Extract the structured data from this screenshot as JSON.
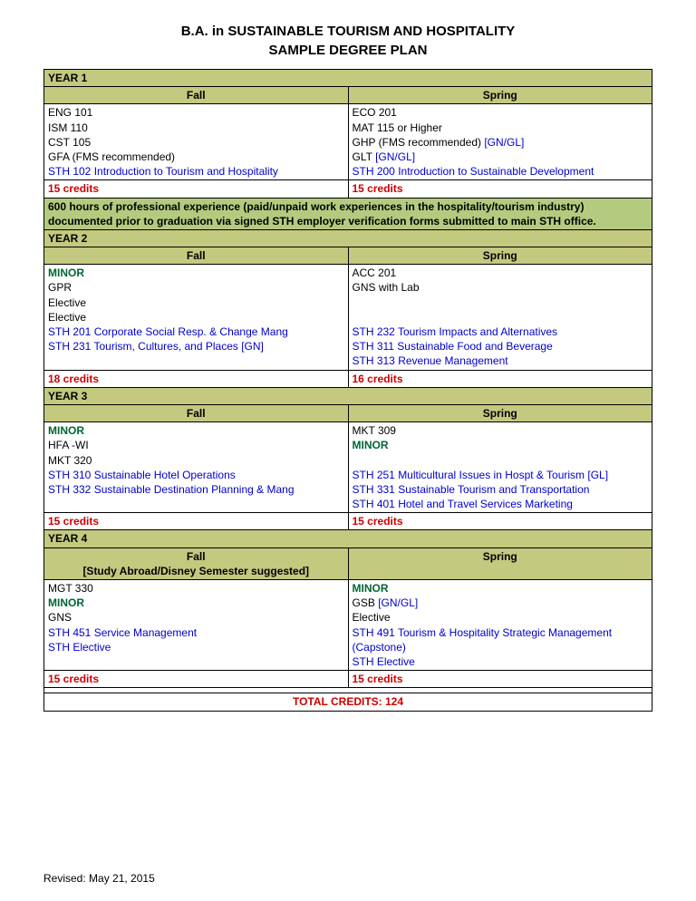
{
  "title1": "B.A. in SUSTAINABLE TOURISM AND HOSPITALITY",
  "title2": "SAMPLE DEGREE PLAN",
  "colors": {
    "headerBg": "#c3c97f",
    "noteBg": "#b4cb7f",
    "green": "#006633",
    "blue": "#0000cc",
    "red": "#cc0000"
  },
  "years": {
    "y1": {
      "label": "YEAR 1",
      "fall": "Fall",
      "spring": "Spring",
      "fallNote": "",
      "springNote": "",
      "fallCourses": [
        {
          "t": "ENG 101",
          "c": "b"
        },
        {
          "t": "ISM 110",
          "c": "b"
        },
        {
          "t": "CST 105",
          "c": "b"
        },
        {
          "t": "GFA (FMS recommended)",
          "c": "b"
        },
        {
          "t": "STH 102 Introduction to Tourism and Hospitality",
          "c": "blue"
        }
      ],
      "springCourses": [
        {
          "t": "ECO 201",
          "c": "b"
        },
        {
          "t": "MAT 115 or Higher",
          "c": "b"
        },
        {
          "t": "GHP (FMS recommended) ",
          "c": "b",
          "suffix": "[GN/GL]",
          "sc": "blue"
        },
        {
          "t": "GLT ",
          "c": "b",
          "suffix": "[GN/GL]",
          "sc": "blue"
        },
        {
          "t": "STH 200 Introduction to Sustainable Development",
          "c": "blue"
        }
      ],
      "fallCredits": "15 credits",
      "springCredits": "15 credits"
    },
    "note": "600 hours of professional experience (paid/unpaid work experiences in the hospitality/tourism industry) documented prior to graduation via signed STH employer verification forms submitted to main STH office.",
    "y2": {
      "label": "YEAR 2",
      "fall": "Fall",
      "spring": "Spring",
      "fallCourses": [
        {
          "t": "MINOR",
          "c": "green"
        },
        {
          "t": "GPR",
          "c": "b"
        },
        {
          "t": "Elective",
          "c": "b"
        },
        {
          "t": "Elective",
          "c": "b"
        },
        {
          "t": "STH 201 Corporate Social Resp. & Change Mang",
          "c": "blue"
        },
        {
          "t": "STH 231 Tourism, Cultures, and Places [GN]",
          "c": "blue"
        }
      ],
      "springCourses": [
        {
          "t": "ACC 201",
          "c": "b"
        },
        {
          "t": "GNS with Lab",
          "c": "b"
        },
        {
          "t": "",
          "c": "b"
        },
        {
          "t": "",
          "c": "b"
        },
        {
          "t": "STH 232 Tourism Impacts and Alternatives",
          "c": "blue"
        },
        {
          "t": "STH 311 Sustainable Food and Beverage",
          "c": "blue"
        },
        {
          "t": "STH 313 Revenue Management",
          "c": "blue"
        }
      ],
      "fallCredits": "18 credits",
      "springCredits": "16 credits"
    },
    "y3": {
      "label": "YEAR 3",
      "fall": "Fall",
      "spring": "Spring",
      "fallCourses": [
        {
          "t": "MINOR",
          "c": "green"
        },
        {
          "t": "HFA -WI",
          "c": "b"
        },
        {
          "t": "MKT 320",
          "c": "b"
        },
        {
          "t": "STH 310 Sustainable Hotel Operations",
          "c": "blue"
        },
        {
          "t": "STH 332 Sustainable Destination Planning & Mang",
          "c": "blue"
        }
      ],
      "springCourses": [
        {
          "t": "MKT 309",
          "c": "b"
        },
        {
          "t": "MINOR",
          "c": "green"
        },
        {
          "t": "",
          "c": "b"
        },
        {
          "t": "STH 251 Multicultural Issues in Hospt & Tourism [GL]",
          "c": "blue"
        },
        {
          "t": "STH 331 Sustainable Tourism and Transportation",
          "c": "blue"
        },
        {
          "t": "STH 401 Hotel and Travel Services Marketing",
          "c": "blue"
        }
      ],
      "fallCredits": "15 credits",
      "springCredits": "15 credits"
    },
    "y4": {
      "label": "YEAR 4",
      "fall": "Fall",
      "spring": "Spring",
      "fallNote": "[Study Abroad/Disney Semester suggested]",
      "fallCourses": [
        {
          "t": "MGT 330",
          "c": "b"
        },
        {
          "t": "MINOR",
          "c": "green"
        },
        {
          "t": "GNS",
          "c": "b"
        },
        {
          "t": "STH 451 Service Management",
          "c": "blue"
        },
        {
          "t": "STH Elective",
          "c": "blue"
        }
      ],
      "springCourses": [
        {
          "t": "MINOR",
          "c": "green"
        },
        {
          "t": "GSB ",
          "c": "b",
          "suffix": "[GN/GL]",
          "sc": "blue"
        },
        {
          "t": "Elective",
          "c": "b"
        },
        {
          "t": "STH 491 Tourism & Hospitality Strategic Management (Capstone)",
          "c": "blue"
        },
        {
          "t": "STH Elective",
          "c": "blue"
        }
      ],
      "fallCredits": "15 credits",
      "springCredits": "15 credits"
    }
  },
  "total": "TOTAL CREDITS: 124",
  "revised": "Revised: May 21, 2015"
}
